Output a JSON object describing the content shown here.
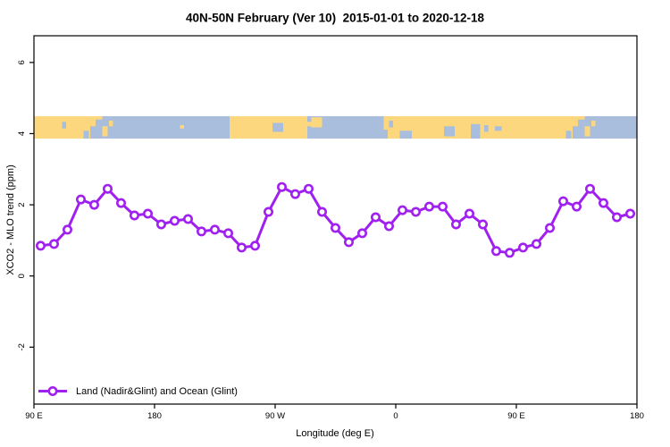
{
  "legend": {
    "label": "Land (Nadir&Glint) and Ocean (Glint)"
  },
  "colors": {
    "series": "#A020F0",
    "land": "#FCD77E",
    "ocean": "#A9BEDC",
    "frame": "#000000",
    "background": "#FFFFFF"
  },
  "chart_data": {
    "type": "line",
    "title": "40N-50N February (Ver 10)  2015-01-01 to 2020-12-18",
    "xlabel": "Longitude (deg E)",
    "ylabel": "XCO2 - MLO trend (ppm)",
    "xlim": [
      90,
      540
    ],
    "ylim": [
      -3.6,
      6.75
    ],
    "grid": "off",
    "legend_position": "bottom-left",
    "x_ticks": [
      {
        "value": 90,
        "label": "90 E"
      },
      {
        "value": 180,
        "label": "180"
      },
      {
        "value": 270,
        "label": "90 W"
      },
      {
        "value": 360,
        "label": "0"
      },
      {
        "value": 450,
        "label": "90 E"
      },
      {
        "value": 540,
        "label": "180"
      }
    ],
    "y_ticks": [
      {
        "value": -2,
        "label": "-2"
      },
      {
        "value": 0,
        "label": "0"
      },
      {
        "value": 2,
        "label": "2"
      },
      {
        "value": 4,
        "label": "4"
      },
      {
        "value": 6,
        "label": "6"
      }
    ],
    "series": [
      {
        "name": "Land (Nadir&Glint) and Ocean (Glint)",
        "color": "#A020F0",
        "marker": "open-circle",
        "x": [
          95,
          105,
          115,
          125,
          135,
          145,
          155,
          165,
          175,
          185,
          195,
          205,
          215,
          225,
          235,
          245,
          255,
          265,
          275,
          285,
          295,
          305,
          315,
          325,
          335,
          345,
          355,
          365,
          375,
          385,
          395,
          405,
          415,
          425,
          435,
          445,
          455,
          465,
          475,
          485,
          495,
          505,
          515,
          525,
          535
        ],
        "y": [
          0.85,
          0.9,
          1.3,
          2.15,
          2.0,
          2.45,
          2.05,
          1.7,
          1.75,
          1.45,
          1.55,
          1.6,
          1.25,
          1.3,
          1.2,
          0.8,
          0.85,
          1.8,
          2.5,
          2.3,
          2.45,
          1.8,
          1.35,
          0.95,
          1.2,
          1.65,
          1.4,
          1.85,
          1.8,
          1.95,
          1.95,
          1.45,
          1.75,
          1.45,
          0.7,
          0.65,
          0.8,
          0.9,
          1.35,
          2.1,
          1.95,
          2.45,
          2.05,
          1.65,
          1.75
        ]
      }
    ],
    "map_band": {
      "value_bottom": 3.86,
      "value_top": 4.49,
      "land_color": "#FCD77E",
      "ocean_color": "#A9BEDC",
      "base_segments": [
        {
          "from": 90,
          "to": 141,
          "type": "land"
        },
        {
          "from": 141,
          "to": 236,
          "type": "ocean"
        },
        {
          "from": 236,
          "to": 294,
          "type": "land"
        },
        {
          "from": 294,
          "to": 351,
          "type": "ocean"
        },
        {
          "from": 351,
          "to": 501,
          "type": "land"
        },
        {
          "from": 501,
          "to": 540,
          "type": "ocean"
        }
      ],
      "details": [
        {
          "from": 111,
          "to": 114,
          "v0": 0.45,
          "v1": 0.75,
          "type": "ocean"
        },
        {
          "from": 127,
          "to": 131,
          "v0": 0.0,
          "v1": 0.35,
          "type": "ocean"
        },
        {
          "from": 132,
          "to": 136,
          "v0": 0.0,
          "v1": 0.55,
          "type": "ocean"
        },
        {
          "from": 136,
          "to": 141,
          "v0": 0.0,
          "v1": 0.85,
          "type": "ocean"
        },
        {
          "from": 141,
          "to": 145,
          "v0": 0.1,
          "v1": 0.55,
          "type": "land"
        },
        {
          "from": 146,
          "to": 149,
          "v0": 0.55,
          "v1": 0.8,
          "type": "land"
        },
        {
          "from": 199,
          "to": 202,
          "v0": 0.45,
          "v1": 0.6,
          "type": "land"
        },
        {
          "from": 268,
          "to": 276,
          "v0": 0.3,
          "v1": 0.7,
          "type": "ocean"
        },
        {
          "from": 294,
          "to": 297,
          "v0": 0.55,
          "v1": 0.75,
          "type": "land"
        },
        {
          "from": 297,
          "to": 305,
          "v0": 0.5,
          "v1": 0.95,
          "type": "land"
        },
        {
          "from": 351,
          "to": 354,
          "v0": 0.0,
          "v1": 0.4,
          "type": "ocean"
        },
        {
          "from": 355,
          "to": 358,
          "v0": 0.5,
          "v1": 0.8,
          "type": "ocean"
        },
        {
          "from": 363,
          "to": 372,
          "v0": 0.0,
          "v1": 0.35,
          "type": "ocean"
        },
        {
          "from": 396,
          "to": 404,
          "v0": 0.1,
          "v1": 0.55,
          "type": "ocean"
        },
        {
          "from": 416,
          "to": 423,
          "v0": 0.0,
          "v1": 0.65,
          "type": "ocean"
        },
        {
          "from": 426,
          "to": 429,
          "v0": 0.3,
          "v1": 0.6,
          "type": "ocean"
        },
        {
          "from": 434,
          "to": 439,
          "v0": 0.35,
          "v1": 0.55,
          "type": "ocean"
        },
        {
          "from": 487,
          "to": 491,
          "v0": 0.0,
          "v1": 0.35,
          "type": "ocean"
        },
        {
          "from": 492,
          "to": 496,
          "v0": 0.0,
          "v1": 0.55,
          "type": "ocean"
        },
        {
          "from": 496,
          "to": 501,
          "v0": 0.0,
          "v1": 0.85,
          "type": "ocean"
        },
        {
          "from": 501,
          "to": 505,
          "v0": 0.1,
          "v1": 0.55,
          "type": "land"
        },
        {
          "from": 506,
          "to": 509,
          "v0": 0.55,
          "v1": 0.8,
          "type": "land"
        }
      ]
    }
  }
}
